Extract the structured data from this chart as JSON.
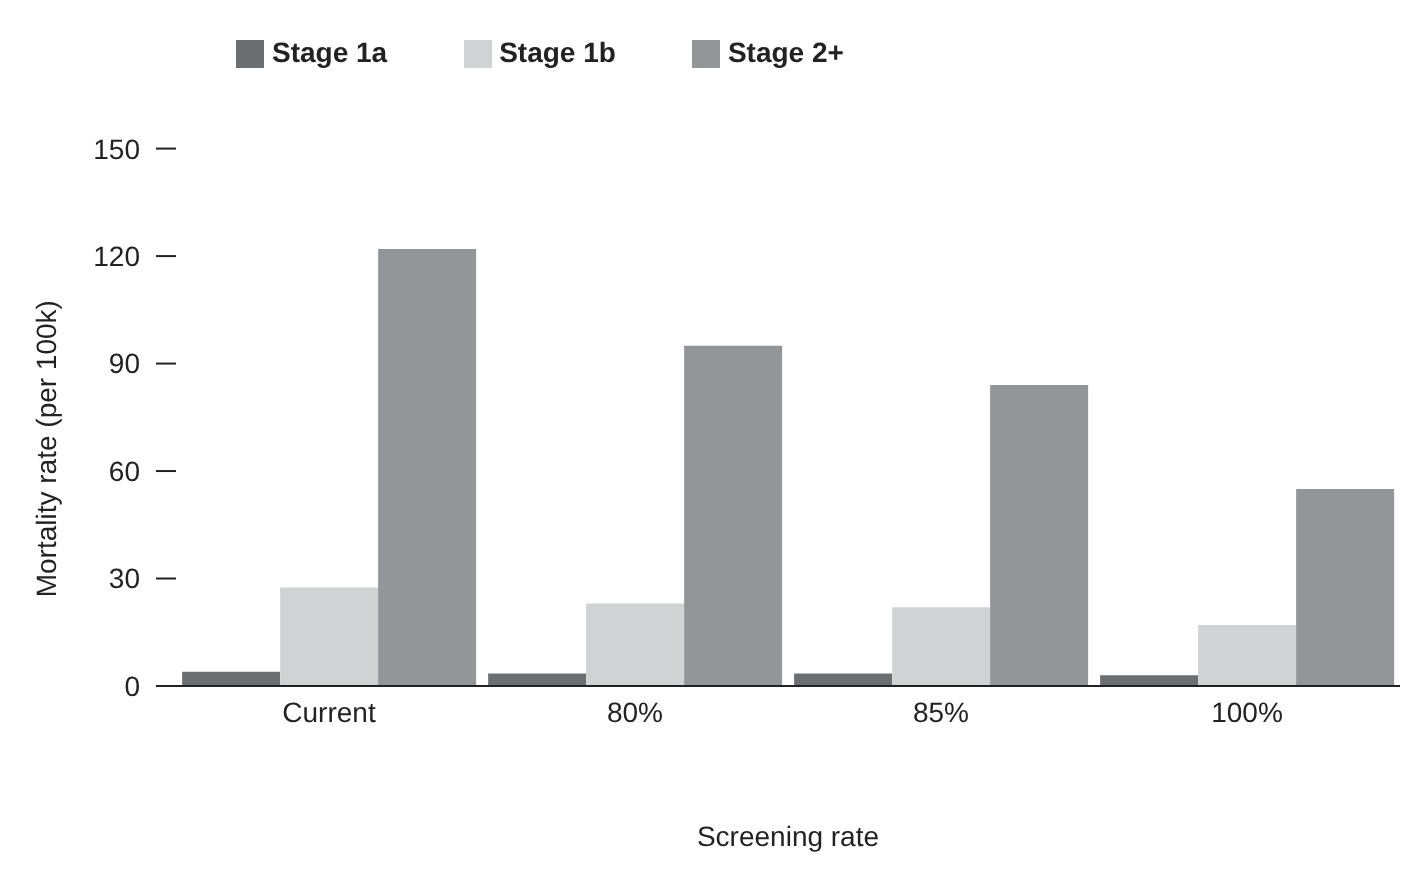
{
  "chart_data": {
    "type": "bar",
    "xlabel": "Screening rate",
    "ylabel": "Mortality rate (per 100k)",
    "categories": [
      "Current",
      "80%",
      "85%",
      "100%"
    ],
    "series": [
      {
        "name": "Stage 1a",
        "color": "#6d6e71",
        "values": [
          4,
          3.5,
          3.5,
          3
        ]
      },
      {
        "name": "Stage 1b",
        "color": "#d1d2d4",
        "values": [
          27.5,
          23,
          22,
          17
        ]
      },
      {
        "name": "Stage 2+",
        "color": "#939598",
        "values": [
          122,
          95,
          84,
          55
        ]
      }
    ],
    "ylim": [
      0,
      150
    ],
    "yticks": [
      0,
      30,
      60,
      90,
      120,
      150
    ],
    "grid": false,
    "legend": "top left"
  }
}
